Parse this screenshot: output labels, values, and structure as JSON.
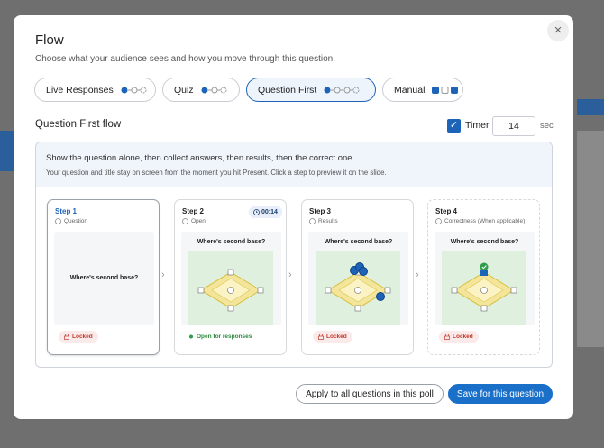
{
  "modal": {
    "title": "Flow",
    "subtitle": "Choose what your audience sees and how you move through this question.",
    "modes": [
      "Live Responses",
      "Quiz",
      "Question First",
      "Manual"
    ],
    "section_title": "Question First flow",
    "timer": {
      "label": "Timer",
      "value": 14,
      "unit": "sec"
    },
    "info": {
      "headline": "Show the question alone, then collect answers, then results, then the correct one.",
      "detail": "Your question and title stay on screen from the moment you hit Present. Click a step to preview it on the slide."
    },
    "steps": [
      {
        "title": "Step 1",
        "label": "Question",
        "question": "Where's second base?",
        "status": "Locked"
      },
      {
        "title": "Step 2",
        "label": "Open",
        "timer": "00:14",
        "question": "Where's second base?",
        "status": "Open for responses"
      },
      {
        "title": "Step 3",
        "label": "Results",
        "question": "Where's second base?",
        "status": "Locked"
      },
      {
        "title": "Step 4",
        "label": "Correctness (When applicable)",
        "question": "Where's second base?",
        "status": "Locked"
      }
    ],
    "buttons": {
      "apply_all": "Apply to all questions in this poll",
      "save": "Save for this question"
    }
  }
}
